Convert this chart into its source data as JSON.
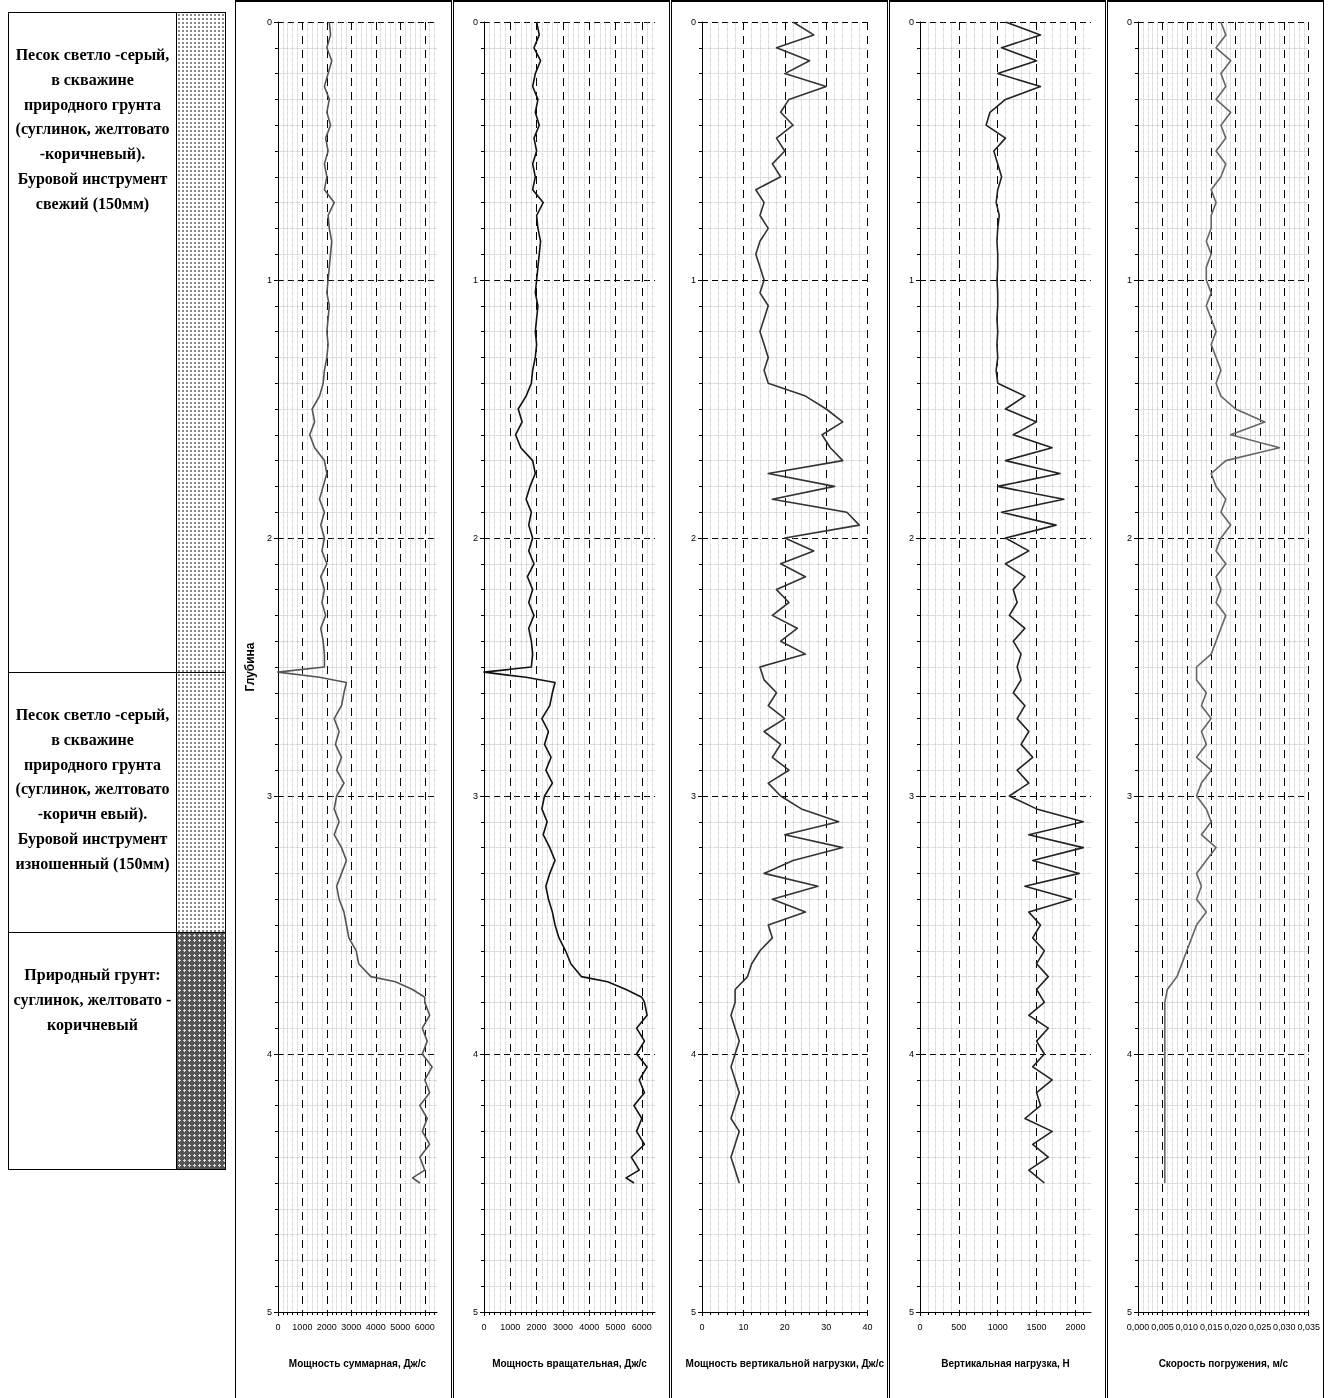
{
  "chart_data": [
    {
      "type": "other",
      "annotations": [
        "Песок светло -серый, в скважине природного грунта (суглинок, желтовато -коричневый). Буровой инструмент свежий (150мм)",
        "Песок светло -серый, в скважине природного грунта (суглинок, желтовато -коричн евый). Буровой инструмент изношенный (150мм)",
        "Природный грунт: суглинок, желтовато - коричневый"
      ]
    },
    {
      "type": "line",
      "xlabel": "Мощность суммарная, Дж/с",
      "ylabel": "Глубина",
      "xlim": [
        0,
        6500
      ],
      "xticks": [
        0,
        1000,
        2000,
        3000,
        4000,
        5000,
        6000
      ],
      "ylim": [
        5,
        0
      ],
      "yticks": [
        0,
        1,
        2,
        3,
        4,
        5
      ],
      "grid": true,
      "series": [
        {
          "color": "#555555",
          "x": [
            2100,
            2150,
            2000,
            2200,
            2050,
            1900,
            2100,
            2000,
            2150,
            1950,
            2050,
            1900,
            2000,
            1900,
            2300,
            2050,
            2100,
            2200,
            2150,
            2100,
            2050,
            2000,
            2100,
            2050,
            2000,
            2050,
            2000,
            1900,
            1850,
            1700,
            1400,
            1500,
            1300,
            1500,
            1900,
            2000,
            1850,
            1700,
            1900,
            1750,
            1900,
            1800,
            2000,
            1750,
            1900,
            1800,
            1950,
            1750,
            1850,
            1900,
            1900,
            0,
            1700,
            2800,
            2700,
            2600,
            2300,
            2500,
            2350,
            2600,
            2400,
            2700,
            2400,
            2300,
            2500,
            2300,
            2600,
            2800,
            2600,
            2400,
            2500,
            2700,
            2800,
            2900,
            3200,
            3300,
            3800,
            4800,
            5500,
            6000,
            6000,
            6200,
            5900,
            6100,
            5900,
            6300,
            6000,
            6200,
            5800,
            6100,
            5900,
            6200,
            5800,
            6000,
            5500,
            5800
          ],
          "values": [
            0,
            0.05,
            0.1,
            0.15,
            0.2,
            0.25,
            0.3,
            0.35,
            0.4,
            0.45,
            0.5,
            0.55,
            0.6,
            0.65,
            0.7,
            0.75,
            0.8,
            0.85,
            0.9,
            0.95,
            1,
            1.05,
            1.1,
            1.15,
            1.2,
            1.25,
            1.3,
            1.35,
            1.4,
            1.45,
            1.5,
            1.55,
            1.6,
            1.65,
            1.7,
            1.75,
            1.8,
            1.85,
            1.9,
            1.95,
            2,
            2.05,
            2.1,
            2.15,
            2.2,
            2.25,
            2.3,
            2.35,
            2.4,
            2.45,
            2.5,
            2.52,
            2.54,
            2.56,
            2.6,
            2.65,
            2.7,
            2.75,
            2.8,
            2.85,
            2.9,
            2.95,
            3,
            3.05,
            3.1,
            3.15,
            3.2,
            3.25,
            3.3,
            3.35,
            3.4,
            3.45,
            3.5,
            3.55,
            3.6,
            3.65,
            3.7,
            3.72,
            3.75,
            3.78,
            3.8,
            3.85,
            3.9,
            3.95,
            4,
            4.05,
            4.1,
            4.15,
            4.2,
            4.25,
            4.3,
            4.35,
            4.4,
            4.45,
            4.48,
            4.5
          ]
        }
      ]
    },
    {
      "type": "line",
      "xlabel": "Мощность вращательная, Дж/с",
      "xlim": [
        0,
        6500
      ],
      "xticks": [
        0,
        1000,
        2000,
        3000,
        4000,
        5000,
        6000
      ],
      "ylim": [
        5,
        0
      ],
      "yticks": [
        0,
        1,
        2,
        3,
        4,
        5
      ],
      "grid": true,
      "series": [
        {
          "color": "#111111",
          "x": [
            2000,
            2100,
            1900,
            2150,
            1950,
            1850,
            2050,
            1950,
            2100,
            1900,
            2000,
            1850,
            1950,
            1850,
            2250,
            2000,
            2050,
            2150,
            2100,
            2050,
            2000,
            1950,
            2050,
            2000,
            1950,
            2000,
            1950,
            1850,
            1800,
            1600,
            1300,
            1450,
            1200,
            1400,
            1850,
            1950,
            1750,
            1600,
            1800,
            1700,
            1850,
            1700,
            1900,
            1650,
            1850,
            1700,
            1900,
            1700,
            1800,
            1850,
            1800,
            0,
            1600,
            2700,
            2600,
            2500,
            2200,
            2450,
            2300,
            2550,
            2350,
            2600,
            2300,
            2200,
            2400,
            2250,
            2500,
            2700,
            2500,
            2350,
            2450,
            2600,
            2700,
            2850,
            3100,
            3300,
            3700,
            4700,
            5400,
            6000,
            6100,
            6200,
            5800,
            6100,
            5800,
            6200,
            5900,
            6100,
            5700,
            6000,
            5800,
            6100,
            5600,
            5900,
            5400,
            5700
          ],
          "values": [
            0,
            0.05,
            0.1,
            0.15,
            0.2,
            0.25,
            0.3,
            0.35,
            0.4,
            0.45,
            0.5,
            0.55,
            0.6,
            0.65,
            0.7,
            0.75,
            0.8,
            0.85,
            0.9,
            0.95,
            1,
            1.05,
            1.1,
            1.15,
            1.2,
            1.25,
            1.3,
            1.35,
            1.4,
            1.45,
            1.5,
            1.55,
            1.6,
            1.65,
            1.7,
            1.75,
            1.8,
            1.85,
            1.9,
            1.95,
            2,
            2.05,
            2.1,
            2.15,
            2.2,
            2.25,
            2.3,
            2.35,
            2.4,
            2.45,
            2.5,
            2.52,
            2.54,
            2.56,
            2.6,
            2.65,
            2.7,
            2.75,
            2.8,
            2.85,
            2.9,
            2.95,
            3,
            3.05,
            3.1,
            3.15,
            3.2,
            3.25,
            3.3,
            3.35,
            3.4,
            3.45,
            3.5,
            3.55,
            3.6,
            3.65,
            3.7,
            3.72,
            3.75,
            3.78,
            3.8,
            3.85,
            3.9,
            3.95,
            4,
            4.05,
            4.1,
            4.15,
            4.2,
            4.25,
            4.3,
            4.35,
            4.4,
            4.45,
            4.48,
            4.5
          ]
        }
      ]
    },
    {
      "type": "line",
      "xlabel": "Мощность вертикальной нагрузки, Дж/с",
      "xlim": [
        0,
        40
      ],
      "xticks": [
        0,
        10,
        20,
        30,
        40
      ],
      "ylim": [
        5,
        0
      ],
      "yticks": [
        0,
        1,
        2,
        3,
        4,
        5
      ],
      "grid": true,
      "series": [
        {
          "color": "#333333",
          "x": [
            22,
            27,
            18,
            26,
            20,
            30,
            21,
            19,
            22,
            18,
            20,
            17,
            19,
            13,
            15,
            14,
            16,
            14,
            13,
            14,
            15,
            14,
            16,
            15,
            14,
            15,
            16,
            15,
            16,
            25,
            30,
            34,
            29,
            31,
            34,
            16,
            32,
            17,
            35,
            38,
            20,
            27,
            19,
            25,
            18,
            21,
            17,
            23,
            19,
            25,
            14,
            15,
            18,
            16,
            20,
            15,
            19,
            17,
            21,
            16,
            19,
            24,
            33,
            20,
            34,
            22,
            15,
            28,
            17,
            25,
            16,
            17,
            14,
            12,
            11,
            8,
            8,
            7,
            8,
            9,
            8,
            7,
            8,
            9,
            8,
            7,
            9,
            8,
            7,
            8,
            9
          ],
          "values": [
            0,
            0.05,
            0.1,
            0.15,
            0.2,
            0.25,
            0.3,
            0.35,
            0.4,
            0.45,
            0.5,
            0.55,
            0.6,
            0.65,
            0.7,
            0.75,
            0.8,
            0.85,
            0.9,
            0.95,
            1,
            1.05,
            1.1,
            1.15,
            1.2,
            1.25,
            1.3,
            1.35,
            1.4,
            1.45,
            1.5,
            1.55,
            1.6,
            1.65,
            1.7,
            1.75,
            1.8,
            1.85,
            1.9,
            1.95,
            2,
            2.05,
            2.1,
            2.15,
            2.2,
            2.25,
            2.3,
            2.35,
            2.4,
            2.45,
            2.5,
            2.55,
            2.6,
            2.65,
            2.7,
            2.75,
            2.8,
            2.85,
            2.9,
            2.95,
            3,
            3.05,
            3.1,
            3.15,
            3.2,
            3.25,
            3.3,
            3.35,
            3.4,
            3.45,
            3.5,
            3.55,
            3.6,
            3.65,
            3.7,
            3.75,
            3.8,
            3.85,
            3.9,
            3.95,
            4,
            4.05,
            4.1,
            4.15,
            4.2,
            4.25,
            4.3,
            4.35,
            4.4,
            4.45,
            4.5
          ]
        }
      ]
    },
    {
      "type": "line",
      "xlabel": "Вертикальная нагрузка, Н",
      "xlim": [
        0,
        2200
      ],
      "xticks": [
        0,
        500,
        1000,
        1500,
        2000
      ],
      "ylim": [
        5,
        0
      ],
      "yticks": [
        0,
        1,
        2,
        3,
        4,
        5
      ],
      "grid": true,
      "series": [
        {
          "color": "#222222",
          "x": [
            1100,
            1550,
            1050,
            1500,
            1000,
            1550,
            1100,
            900,
            850,
            1100,
            950,
            1000,
            1050,
            1000,
            980,
            1020,
            1000,
            990,
            1000,
            1000,
            990,
            1000,
            1000,
            990,
            1000,
            990,
            1000,
            980,
            1000,
            1350,
            1100,
            1500,
            1200,
            1700,
            1100,
            1800,
            1000,
            1850,
            1050,
            1750,
            1100,
            1400,
            1100,
            1350,
            1200,
            1250,
            1150,
            1350,
            1200,
            1300,
            1250,
            1300,
            1200,
            1350,
            1250,
            1400,
            1300,
            1450,
            1250,
            1400,
            1150,
            1500,
            2100,
            1400,
            2100,
            1450,
            2050,
            1350,
            1950,
            1400,
            1550,
            1450,
            1600,
            1500,
            1650,
            1500,
            1600,
            1400,
            1650,
            1500,
            1600,
            1450,
            1700,
            1500,
            1550,
            1350,
            1700,
            1450,
            1650,
            1400,
            1600
          ],
          "values": [
            0,
            0.05,
            0.1,
            0.15,
            0.2,
            0.25,
            0.3,
            0.35,
            0.4,
            0.45,
            0.5,
            0.55,
            0.6,
            0.65,
            0.7,
            0.75,
            0.8,
            0.85,
            0.9,
            0.95,
            1,
            1.05,
            1.1,
            1.15,
            1.2,
            1.25,
            1.3,
            1.35,
            1.4,
            1.45,
            1.5,
            1.55,
            1.6,
            1.65,
            1.7,
            1.75,
            1.8,
            1.85,
            1.9,
            1.95,
            2,
            2.05,
            2.1,
            2.15,
            2.2,
            2.25,
            2.3,
            2.35,
            2.4,
            2.45,
            2.5,
            2.55,
            2.6,
            2.65,
            2.7,
            2.75,
            2.8,
            2.85,
            2.9,
            2.95,
            3,
            3.05,
            3.1,
            3.15,
            3.2,
            3.25,
            3.3,
            3.35,
            3.4,
            3.45,
            3.5,
            3.55,
            3.6,
            3.65,
            3.7,
            3.75,
            3.8,
            3.85,
            3.9,
            3.95,
            4,
            4.05,
            4.1,
            4.15,
            4.2,
            4.25,
            4.3,
            4.35,
            4.4,
            4.45,
            4.5
          ]
        }
      ]
    },
    {
      "type": "line",
      "xlabel": "Скорость погружения, м/с",
      "xlim": [
        0,
        0.035
      ],
      "xticks": [
        {
          "value": 0,
          "label": "0,000"
        },
        {
          "value": 0.005,
          "label": "0,005"
        },
        {
          "value": 0.01,
          "label": "0,010"
        },
        {
          "value": 0.015,
          "label": "0,015"
        },
        {
          "value": 0.02,
          "label": "0,020"
        },
        {
          "value": 0.025,
          "label": "0,025"
        },
        {
          "value": 0.03,
          "label": "0,030"
        },
        {
          "value": 0.035,
          "label": "0,035"
        }
      ],
      "ylim": [
        5,
        0
      ],
      "yticks": [
        0,
        1,
        2,
        3,
        4,
        5
      ],
      "grid": true,
      "series": [
        {
          "color": "#666666",
          "x": [
            0.017,
            0.018,
            0.016,
            0.019,
            0.017,
            0.018,
            0.016,
            0.019,
            0.017,
            0.018,
            0.016,
            0.018,
            0.017,
            0.015,
            0.016,
            0.015,
            0.015,
            0.014,
            0.015,
            0.014,
            0.014,
            0.015,
            0.014,
            0.015,
            0.016,
            0.015,
            0.016,
            0.017,
            0.016,
            0.017,
            0.02,
            0.026,
            0.019,
            0.029,
            0.018,
            0.015,
            0.016,
            0.018,
            0.017,
            0.019,
            0.017,
            0.016,
            0.018,
            0.016,
            0.017,
            0.016,
            0.018,
            0.017,
            0.016,
            0.015,
            0.012,
            0.012,
            0.014,
            0.013,
            0.015,
            0.013,
            0.014,
            0.012,
            0.015,
            0.013,
            0.012,
            0.014,
            0.015,
            0.013,
            0.016,
            0.014,
            0.012,
            0.013,
            0.012,
            0.014,
            0.012,
            0.011,
            0.01,
            0.009,
            0.008,
            0.006,
            0.0055,
            0.0055,
            0.0055,
            0.0055,
            0.0055,
            0.0055,
            0.0055,
            0.0055,
            0.0055,
            0.0055,
            0.0055,
            0.0055,
            0.0055,
            0.0055,
            0.0055
          ],
          "values": [
            0,
            0.05,
            0.1,
            0.15,
            0.2,
            0.25,
            0.3,
            0.35,
            0.4,
            0.45,
            0.5,
            0.55,
            0.6,
            0.65,
            0.7,
            0.75,
            0.8,
            0.85,
            0.9,
            0.95,
            1,
            1.05,
            1.1,
            1.15,
            1.2,
            1.25,
            1.3,
            1.35,
            1.4,
            1.45,
            1.5,
            1.55,
            1.6,
            1.65,
            1.7,
            1.75,
            1.8,
            1.85,
            1.9,
            1.95,
            2,
            2.05,
            2.1,
            2.15,
            2.2,
            2.25,
            2.3,
            2.35,
            2.4,
            2.45,
            2.5,
            2.55,
            2.6,
            2.65,
            2.7,
            2.75,
            2.8,
            2.85,
            2.9,
            2.95,
            3,
            3.05,
            3.1,
            3.15,
            3.2,
            3.25,
            3.3,
            3.35,
            3.4,
            3.45,
            3.5,
            3.55,
            3.6,
            3.65,
            3.7,
            3.75,
            3.8,
            3.85,
            3.9,
            3.95,
            4,
            4.05,
            4.1,
            4.15,
            4.2,
            4.25,
            4.3,
            4.35,
            4.4,
            4.45,
            4.5
          ]
        }
      ]
    }
  ]
}
